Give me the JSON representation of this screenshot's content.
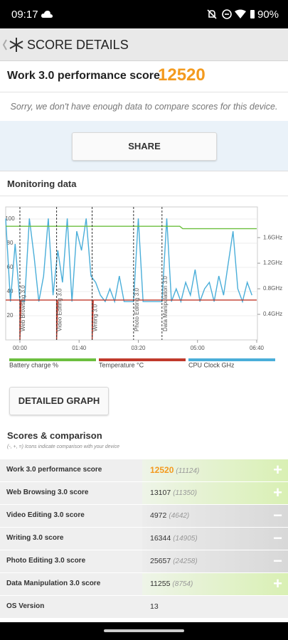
{
  "status_bar": {
    "time": "09:17",
    "battery": "90%"
  },
  "header": {
    "title": "SCORE DETAILS"
  },
  "score": {
    "label": "Work 3.0 performance score",
    "value": 12520
  },
  "notice": "Sorry, we don't have enough data to compare scores for this device.",
  "share_button": "SHARE",
  "monitoring": {
    "title": "Monitoring data"
  },
  "chart_data": {
    "type": "line",
    "xlim": [
      -24,
      400
    ],
    "xticks": [
      {
        "value": 0,
        "label": "00:00"
      },
      {
        "value": 100,
        "label": "01:40"
      },
      {
        "value": 200,
        "label": "03:20"
      },
      {
        "value": 300,
        "label": "05:00"
      },
      {
        "value": 400,
        "label": "06:40"
      }
    ],
    "ylim": [
      0,
      110
    ],
    "yticks": [
      20,
      40,
      60,
      80,
      100
    ],
    "y2lim": [
      0,
      2.08
    ],
    "y2ticks": [
      {
        "value": 0.4,
        "label": "0.4GHz"
      },
      {
        "value": 0.8,
        "label": "0.8GHz"
      },
      {
        "value": 1.2,
        "label": "1.2GHz"
      },
      {
        "value": 1.6,
        "label": "1.6GHz"
      }
    ],
    "grid": true,
    "legend": "bottom",
    "annotations": [
      {
        "text": "Web Browsing 3.0",
        "x": 0
      },
      {
        "text": "Video Editing 3.0",
        "x": 62
      },
      {
        "text": "Writing 3.0",
        "x": 122
      },
      {
        "text": "Photo Editing 3.0",
        "x": 192
      },
      {
        "text": "Data Manipulation 3.0",
        "x": 240
      }
    ],
    "series": [
      {
        "name": "Battery charge %",
        "color": "#6cbf3f",
        "x": [
          -24,
          270,
          275,
          400
        ],
        "values": [
          94,
          94,
          92,
          92
        ]
      },
      {
        "name": "Temperature °C",
        "color": "#c0392b",
        "x": [
          -24,
          0,
          0,
          2,
          62,
          62,
          64,
          122,
          122,
          124,
          400
        ],
        "values": [
          33,
          33,
          0,
          33,
          33,
          0,
          33,
          33,
          0,
          33,
          33
        ]
      },
      {
        "name": "CPU Clock GHz",
        "color": "#4aaed9",
        "axis": "y2",
        "x": [
          -24,
          -16,
          -8,
          0,
          8,
          16,
          24,
          32,
          40,
          48,
          56,
          64,
          72,
          80,
          88,
          96,
          104,
          112,
          120,
          128,
          136,
          144,
          152,
          160,
          168,
          176,
          184,
          192,
          200,
          208,
          216,
          224,
          232,
          240,
          248,
          256,
          264,
          272,
          280,
          288,
          296,
          304,
          312,
          320,
          328,
          336,
          344,
          352,
          360,
          368,
          376,
          384,
          392
        ],
        "values": [
          1.9,
          0.6,
          1.5,
          0.6,
          0.6,
          1.9,
          1.3,
          0.6,
          1.0,
          1.9,
          0.7,
          1.4,
          0.9,
          1.9,
          0.6,
          1.7,
          1.4,
          1.9,
          1.0,
          0.9,
          0.7,
          0.6,
          0.8,
          0.6,
          1.0,
          0.6,
          0.6,
          0.6,
          1.9,
          0.6,
          0.6,
          0.6,
          0.6,
          0.6,
          1.9,
          0.6,
          0.8,
          0.6,
          0.9,
          0.7,
          1.1,
          0.6,
          0.8,
          0.9,
          0.6,
          1.0,
          0.7,
          1.2,
          1.7,
          0.8,
          0.6,
          0.9,
          0.7
        ]
      }
    ]
  },
  "detailed_graph_button": "DETAILED GRAPH",
  "scores": {
    "title": "Scores & comparison",
    "subtitle": "(-, +, =) Icons indicate comparison with your device",
    "rows": [
      {
        "label": "Work 3.0 performance score",
        "score": 12520,
        "comparison": "(11124)",
        "indicator": "+"
      },
      {
        "label": "Web Browsing 3.0 score",
        "score": 13107,
        "comparison": "(11350)",
        "indicator": "+"
      },
      {
        "label": "Video Editing 3.0 score",
        "score": 4972,
        "comparison": "(4642)",
        "indicator": "−"
      },
      {
        "label": "Writing 3.0 score",
        "score": 16344,
        "comparison": "(14905)",
        "indicator": "−"
      },
      {
        "label": "Photo Editing 3.0 score",
        "score": 25657,
        "comparison": "(24258)",
        "indicator": "−"
      },
      {
        "label": "Data Manipulation 3.0 score",
        "score": 11255,
        "comparison": "(8754)",
        "indicator": "+"
      },
      {
        "label": "OS Version",
        "score": 13
      }
    ]
  }
}
